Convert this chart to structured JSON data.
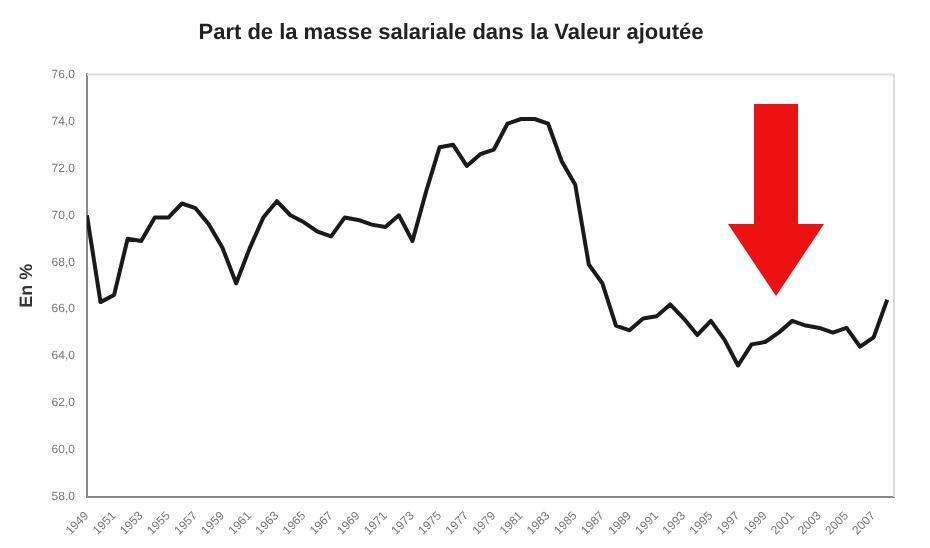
{
  "chart_data": {
    "type": "line",
    "title": "Part de la masse salariale dans la Valeur ajoutée",
    "ylabel": "En %",
    "x": [
      1949,
      1950,
      1951,
      1952,
      1953,
      1954,
      1955,
      1956,
      1957,
      1958,
      1959,
      1960,
      1961,
      1962,
      1963,
      1964,
      1965,
      1966,
      1967,
      1968,
      1969,
      1970,
      1971,
      1972,
      1973,
      1974,
      1975,
      1976,
      1977,
      1978,
      1979,
      1980,
      1981,
      1982,
      1983,
      1984,
      1985,
      1986,
      1987,
      1988,
      1989,
      1990,
      1991,
      1992,
      1993,
      1994,
      1995,
      1996,
      1997,
      1998,
      1999,
      2000,
      2001,
      2002,
      2003,
      2004,
      2005,
      2006,
      2007,
      2008
    ],
    "series": [
      {
        "color": "#1a1a1a",
        "values": [
          70.0,
          66.3,
          66.6,
          69.0,
          68.9,
          69.9,
          69.9,
          70.5,
          70.3,
          69.6,
          68.6,
          67.1,
          68.6,
          69.9,
          70.6,
          70.0,
          69.7,
          69.3,
          69.1,
          69.9,
          69.8,
          69.6,
          69.5,
          70.0,
          68.9,
          71.0,
          72.9,
          73.0,
          72.1,
          72.6,
          72.8,
          73.9,
          74.1,
          74.1,
          73.9,
          72.3,
          71.3,
          67.9,
          67.1,
          65.3,
          65.1,
          65.6,
          65.7,
          66.2,
          65.6,
          64.9,
          65.5,
          64.7,
          63.6,
          64.5,
          64.6,
          65.0,
          65.5,
          65.3,
          65.2,
          65.0,
          65.2,
          64.4,
          64.8,
          66.4
        ]
      }
    ],
    "xlim": [
      1949,
      2008.5
    ],
    "xticks": [
      1949,
      1951,
      1953,
      1955,
      1957,
      1959,
      1961,
      1963,
      1965,
      1967,
      1969,
      1971,
      1973,
      1975,
      1977,
      1979,
      1981,
      1983,
      1985,
      1987,
      1989,
      1991,
      1993,
      1995,
      1997,
      1999,
      2001,
      2003,
      2005,
      2007
    ],
    "ylim": [
      58,
      76
    ],
    "yticks": [
      {
        "value": 58,
        "label": "58,0"
      },
      {
        "value": 60,
        "label": "60,0"
      },
      {
        "value": 62,
        "label": "62,0"
      },
      {
        "value": 64,
        "label": "64,0"
      },
      {
        "value": 66,
        "label": "66,0"
      },
      {
        "value": 68,
        "label": "68,0"
      },
      {
        "value": 70,
        "label": "70,0"
      },
      {
        "value": 72,
        "label": "72,0"
      },
      {
        "value": 74,
        "label": "74,0"
      },
      {
        "value": 76,
        "label": "76,0"
      }
    ],
    "grid": false,
    "legend": false,
    "marker": "none",
    "line_style": "solid"
  }
}
